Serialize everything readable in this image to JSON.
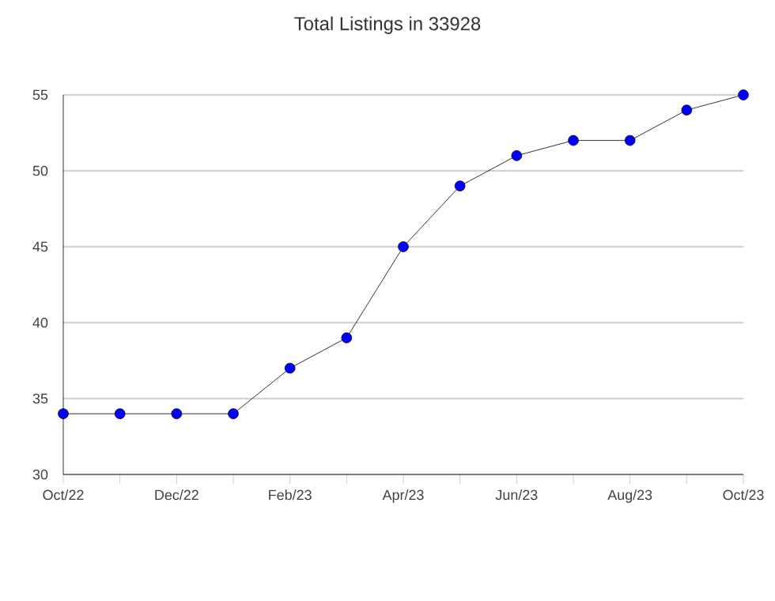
{
  "chart_data": {
    "type": "line",
    "title": "Total Listings in 33928",
    "x": [
      "2022-10",
      "2022-11",
      "2022-12",
      "2023-01",
      "2023-02",
      "2023-03",
      "2023-04",
      "2023-05",
      "2023-06",
      "2023-07",
      "2023-08",
      "2023-09",
      "2023-10"
    ],
    "values": [
      34,
      34,
      34,
      34,
      37,
      39,
      45,
      49,
      51,
      52,
      52,
      54,
      55
    ],
    "color": "#0000ff",
    "marker": "circle",
    "line_style": "solid",
    "grid": "y",
    "xlim": [
      "2022-10",
      "2023-10"
    ],
    "xticks": [
      {
        "value": "2022-10",
        "label": "Oct/22"
      },
      {
        "value": "2022-11",
        "label": null
      },
      {
        "value": "2022-12",
        "label": "Dec/22"
      },
      {
        "value": "2023-01",
        "label": null
      },
      {
        "value": "2023-02",
        "label": "Feb/23"
      },
      {
        "value": "2023-03",
        "label": null
      },
      {
        "value": "2023-04",
        "label": "Apr/23"
      },
      {
        "value": "2023-05",
        "label": null
      },
      {
        "value": "2023-06",
        "label": "Jun/23"
      },
      {
        "value": "2023-07",
        "label": null
      },
      {
        "value": "2023-08",
        "label": "Aug/23"
      },
      {
        "value": "2023-09",
        "label": null
      },
      {
        "value": "2023-10",
        "label": "Oct/23"
      }
    ],
    "ylim": [
      30,
      55
    ],
    "yticks": [
      30,
      35,
      40,
      45,
      50,
      55
    ]
  }
}
